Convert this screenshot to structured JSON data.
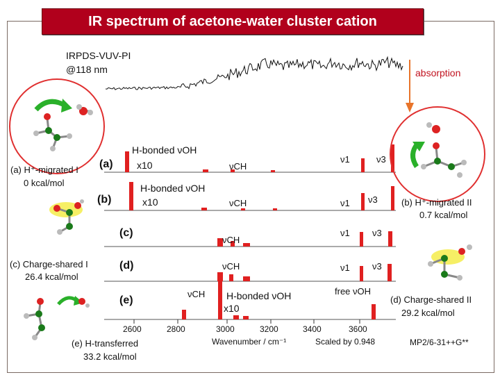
{
  "title": "IR spectrum of acetone-water cluster cation",
  "exp": {
    "method": "IRPDS-VUV-PI",
    "wavelength": "@118 nm",
    "absorption_label": "absorption",
    "arrow_color": "#e8742a"
  },
  "traces": {
    "a": {
      "label": "(a)",
      "hbond": "H-bonded νOH",
      "scale": "x10",
      "nuCH": "νCH",
      "nu1": "ν1",
      "nu3": "ν3"
    },
    "b": {
      "label": "(b)",
      "hbond": "H-bonded νOH",
      "scale": "x10",
      "nuCH": "νCH",
      "nu1": "ν1",
      "nu3": "ν3"
    },
    "c": {
      "label": "(c)",
      "nuCH": "νCH",
      "nu1": "ν1",
      "nu3": "ν3"
    },
    "d": {
      "label": "(d)",
      "nuCH": "νCH",
      "nu1": "ν1",
      "nu3": "ν3"
    },
    "e": {
      "label": "(e)",
      "nuCH": "νCH",
      "hbond": "H-bonded νOH",
      "scale": "x10",
      "free": "free νOH"
    }
  },
  "isomers": {
    "a": {
      "name": "(a) H⁺-migrated I",
      "energy": "0 kcal/mol"
    },
    "b": {
      "name": "(b) H⁺-migrated II",
      "energy": "0.7 kcal/mol"
    },
    "c": {
      "name": "(c) Charge-shared I",
      "energy": "26.4 kcal/mol"
    },
    "d": {
      "name": "(d) Charge-shared II",
      "energy": "29.2 kcal/mol"
    },
    "e": {
      "name": "(e) H-transferred",
      "energy": "33.2 kcal/mol"
    }
  },
  "axis": {
    "ticks": [
      "2600",
      "2800",
      "3000",
      "3200",
      "3400",
      "3600"
    ],
    "xlabel": "Wavenumber / cm⁻¹",
    "scaling": "Scaled by 0.948",
    "theory": "MP2/6-31++G**"
  },
  "colors": {
    "title_bg": "#b1001c",
    "bars": "#e02020",
    "circle": "#e03030",
    "green_arrow": "#2ab02a"
  }
}
